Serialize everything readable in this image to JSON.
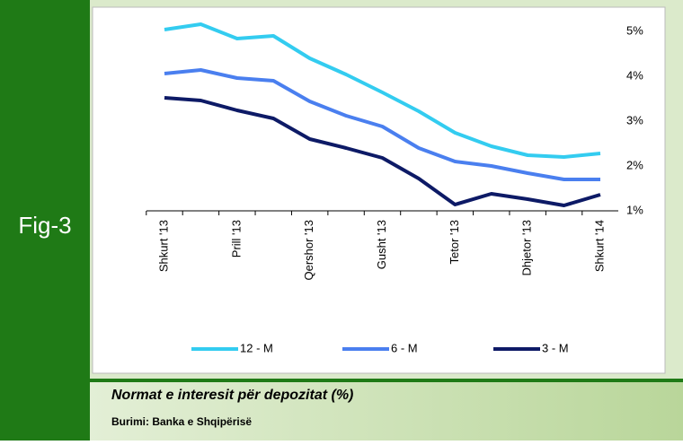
{
  "figure_label": "Fig-3",
  "caption": "Normat e interesit për depozitat (%)",
  "source": "Burimi: Banka e Shqipërisë",
  "chart_data": {
    "type": "line",
    "categories": [
      "Shkurt '13",
      null,
      "Prill '13",
      null,
      "Qershor '13",
      null,
      "Gusht '13",
      null,
      "Tetor '13",
      null,
      "Dhjetor '13",
      null,
      "Shkurt '14"
    ],
    "series": [
      {
        "name": "12 - M",
        "color": "#33ccf0",
        "values": [
          5.04,
          5.16,
          4.84,
          4.9,
          4.4,
          4.04,
          3.64,
          3.22,
          2.74,
          2.44,
          2.24,
          2.2,
          2.28
        ]
      },
      {
        "name": "6 - M",
        "color": "#4a7fef",
        "values": [
          4.06,
          4.14,
          3.96,
          3.9,
          3.44,
          3.12,
          2.88,
          2.4,
          2.1,
          2.0,
          1.84,
          1.7,
          1.7
        ]
      },
      {
        "name": "3 - M",
        "color": "#0d1a66",
        "values": [
          3.52,
          3.46,
          3.24,
          3.06,
          2.6,
          2.4,
          2.18,
          1.72,
          1.14,
          1.38,
          1.26,
          1.12,
          1.36
        ]
      }
    ],
    "ylim": [
      1,
      5.4
    ],
    "yticks": [
      {
        "value": 1,
        "label": "1%"
      },
      {
        "value": 2,
        "label": "2%"
      },
      {
        "value": 3,
        "label": "3%"
      },
      {
        "value": 4,
        "label": "4%"
      },
      {
        "value": 5,
        "label": "5%"
      }
    ],
    "grid": false,
    "legend": "bottom"
  }
}
